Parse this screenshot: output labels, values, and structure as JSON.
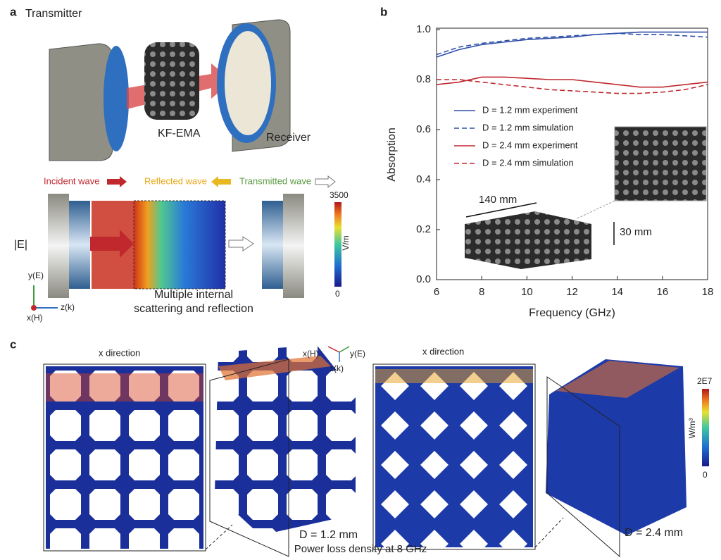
{
  "panel_a": {
    "label": "a",
    "transmitter": "Transmitter",
    "sample": "KF-EMA",
    "receiver": "Receiver",
    "incident": "Incident wave",
    "reflected": "Reflected wave",
    "transmitted": "Transmitted wave",
    "field": "|E|",
    "colorbar_max": 3500,
    "colorbar_unit": "V/m",
    "colorbar_min": 0,
    "axis_y": "y(E)",
    "axis_z": "z(k)",
    "axis_x": "x(H)",
    "caption_lines": [
      "Multiple internal",
      "scattering and reflection"
    ]
  },
  "panel_b": {
    "label": "b",
    "dim_length": "140 mm",
    "dim_height": "30 mm"
  },
  "chart_data": {
    "type": "line",
    "xlabel": "Frequency (GHz)",
    "ylabel": "Absorption",
    "x": [
      6,
      7,
      8,
      9,
      10,
      11,
      12,
      13,
      14,
      15,
      16,
      17,
      18
    ],
    "xlim": [
      6,
      18
    ],
    "xticks": [
      6,
      8,
      10,
      12,
      14,
      16,
      18
    ],
    "ylim": [
      0,
      1
    ],
    "yticks": [
      {
        "value": 0,
        "label": "0.0"
      },
      0.2,
      0.4,
      0.6,
      0.8,
      {
        "value": 1,
        "label": "1.0"
      }
    ],
    "legend": "center-left",
    "series": [
      {
        "name": "D = 1.2 mm experiment",
        "color": "#2f4fa8",
        "dash": false,
        "values": [
          0.89,
          0.92,
          0.94,
          0.95,
          0.96,
          0.965,
          0.97,
          0.98,
          0.985,
          0.99,
          0.99,
          0.99,
          0.99
        ]
      },
      {
        "name": "D = 1.2 mm simulation",
        "color": "#2f4fa8",
        "dash": true,
        "values": [
          0.9,
          0.93,
          0.945,
          0.955,
          0.965,
          0.97,
          0.975,
          0.98,
          0.985,
          0.98,
          0.98,
          0.975,
          0.97
        ]
      },
      {
        "name": "D = 2.4 mm experiment",
        "color": "#c0282d",
        "dash": false,
        "values": [
          0.78,
          0.79,
          0.81,
          0.81,
          0.805,
          0.8,
          0.8,
          0.79,
          0.78,
          0.77,
          0.77,
          0.78,
          0.79
        ]
      },
      {
        "name": "D = 2.4 mm simulation",
        "color": "#c0282d",
        "dash": true,
        "values": [
          0.8,
          0.8,
          0.79,
          0.78,
          0.77,
          0.76,
          0.755,
          0.75,
          0.745,
          0.745,
          0.75,
          0.76,
          0.78
        ]
      }
    ]
  },
  "panel_c": {
    "label": "c",
    "left_view": "x direction",
    "right_view": "x direction",
    "axis_x": "x(H)",
    "axis_y": "y(E)",
    "axis_z": "z(k)",
    "left_size": "D = 1.2 mm",
    "right_size": "D = 2.4 mm",
    "colorbar_max": "2E7",
    "colorbar_unit": "W/m³",
    "colorbar_min": 0,
    "caption": "Power loss density at 8 GHz"
  }
}
